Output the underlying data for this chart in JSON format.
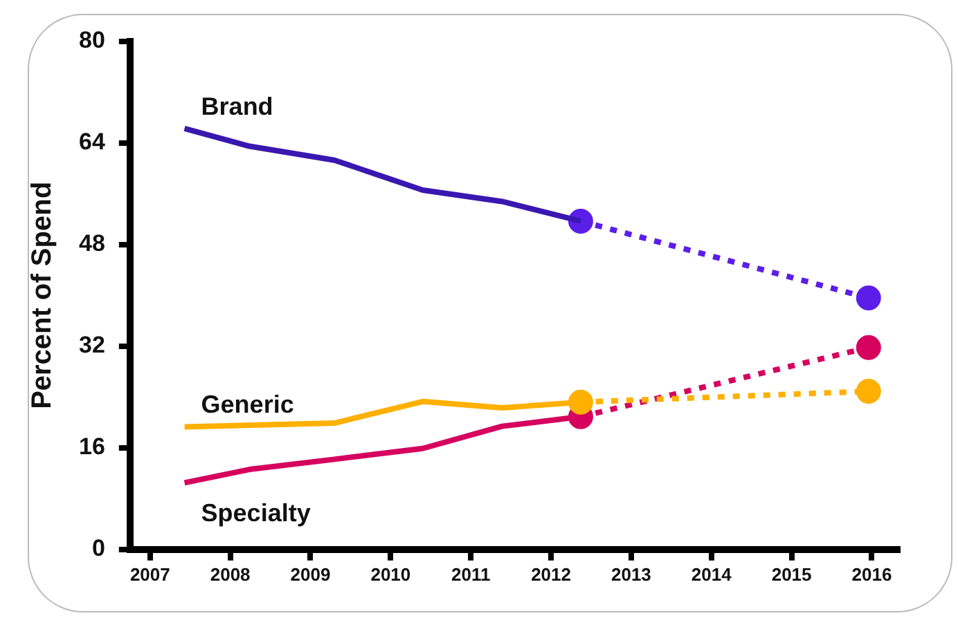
{
  "chart_data": {
    "type": "line",
    "ylabel": "Percent of Spend",
    "xlim": [
      2006.75,
      2016.35
    ],
    "xticks": [
      2007,
      2008,
      2009,
      2010,
      2011,
      2012,
      2013,
      2014,
      2015,
      2016
    ],
    "ylim": [
      0,
      80
    ],
    "yticks": [
      0,
      16,
      32,
      48,
      64,
      80
    ],
    "grid": false,
    "legend": false,
    "series": [
      {
        "name": "Brand",
        "color": "#3a17b0",
        "marker": "none",
        "line_style": "solid",
        "x": [
          2007.43,
          2008.24,
          2009.3,
          2010.4,
          2011.39,
          2012.37
        ],
        "values": [
          66.3,
          63.5,
          61.3,
          56.6,
          54.8,
          51.7
        ]
      },
      {
        "color": "#5b1ee8",
        "marker": "circle",
        "line_style": "dotted",
        "x": [
          2012.37,
          2015.96
        ],
        "values": [
          51.7,
          39.6
        ]
      },
      {
        "name": "Generic",
        "color": "#ffb000",
        "marker": "none",
        "line_style": "solid",
        "x": [
          2007.43,
          2009.3,
          2010.4,
          2011.39,
          2012.37
        ],
        "values": [
          19.3,
          19.9,
          23.3,
          22.3,
          23.2
        ]
      },
      {
        "color": "#ffb000",
        "marker": "circle",
        "line_style": "dotted",
        "x": [
          2012.37,
          2015.96
        ],
        "values": [
          23.2,
          24.9
        ]
      },
      {
        "name": "Specialty",
        "color": "#d6005f",
        "marker": "none",
        "line_style": "solid",
        "x": [
          2007.43,
          2008.24,
          2009.3,
          2010.4,
          2011.39,
          2012.37
        ],
        "values": [
          10.5,
          12.6,
          14.2,
          15.9,
          19.4,
          20.9
        ]
      },
      {
        "color": "#d6005f",
        "marker": "circle",
        "line_style": "dotted",
        "x": [
          2012.37,
          2015.96
        ],
        "values": [
          20.9,
          31.8
        ]
      }
    ]
  }
}
